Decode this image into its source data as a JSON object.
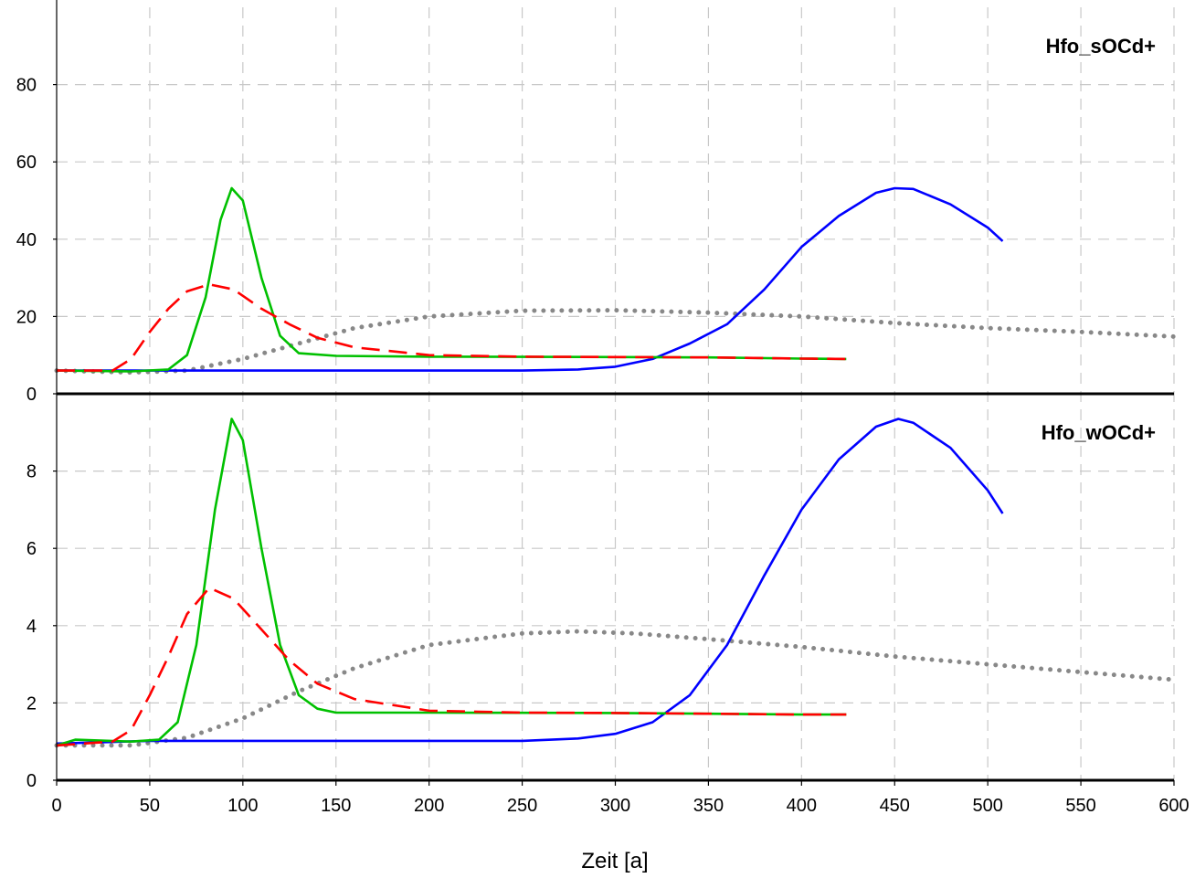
{
  "chart_data": {
    "type": "line",
    "xlabel": "Zeit [a]",
    "x_ticks": [
      0,
      50,
      100,
      150,
      200,
      250,
      300,
      350,
      400,
      450,
      500,
      550,
      600
    ],
    "xlim": [
      0,
      600
    ],
    "grid": true,
    "panels": [
      {
        "title": "Hfo_sOCd+",
        "ylim": [
          0,
          100
        ],
        "y_ticks": [
          0,
          20,
          40,
          60,
          80
        ],
        "series": [
          {
            "color": "#888888",
            "style": "dotted",
            "points": [
              [
                0,
                6
              ],
              [
                40,
                5.5
              ],
              [
                70,
                6
              ],
              [
                100,
                9
              ],
              [
                130,
                13
              ],
              [
                160,
                17
              ],
              [
                200,
                20
              ],
              [
                250,
                21.5
              ],
              [
                300,
                21.6
              ],
              [
                350,
                21
              ],
              [
                400,
                20
              ],
              [
                450,
                18.3
              ],
              [
                500,
                17
              ],
              [
                550,
                16
              ],
              [
                600,
                14.8
              ]
            ]
          },
          {
            "color": "#0000ff",
            "style": "solid",
            "points": [
              [
                0,
                6
              ],
              [
                50,
                6
              ],
              [
                100,
                6
              ],
              [
                150,
                6
              ],
              [
                200,
                6
              ],
              [
                250,
                6
              ],
              [
                280,
                6.3
              ],
              [
                300,
                7
              ],
              [
                320,
                9
              ],
              [
                340,
                13
              ],
              [
                360,
                18
              ],
              [
                380,
                27
              ],
              [
                400,
                38
              ],
              [
                420,
                46
              ],
              [
                440,
                52
              ],
              [
                450,
                53.2
              ],
              [
                460,
                53
              ],
              [
                480,
                49
              ],
              [
                500,
                43
              ],
              [
                508,
                39.5
              ]
            ]
          },
          {
            "color": "#00c000",
            "style": "solid",
            "points": [
              [
                0,
                6
              ],
              [
                40,
                5.8
              ],
              [
                60,
                6.3
              ],
              [
                70,
                10
              ],
              [
                80,
                25
              ],
              [
                88,
                45
              ],
              [
                94,
                53.2
              ],
              [
                100,
                50
              ],
              [
                110,
                30
              ],
              [
                120,
                15
              ],
              [
                130,
                10.5
              ],
              [
                150,
                9.8
              ],
              [
                200,
                9.6
              ],
              [
                300,
                9.5
              ],
              [
                350,
                9.4
              ],
              [
                400,
                9.1
              ],
              [
                424,
                9
              ]
            ]
          },
          {
            "color": "#ff0000",
            "style": "dashed",
            "points": [
              [
                0,
                6
              ],
              [
                30,
                6
              ],
              [
                40,
                9
              ],
              [
                50,
                16
              ],
              [
                60,
                22
              ],
              [
                70,
                26.5
              ],
              [
                82,
                28.3
              ],
              [
                95,
                27
              ],
              [
                110,
                22
              ],
              [
                125,
                18
              ],
              [
                140,
                14.5
              ],
              [
                160,
                12
              ],
              [
                200,
                10
              ],
              [
                250,
                9.6
              ],
              [
                300,
                9.5
              ],
              [
                350,
                9.4
              ],
              [
                400,
                9.1
              ],
              [
                424,
                9
              ]
            ]
          }
        ]
      },
      {
        "title": "Hfo_wOCd+",
        "ylim": [
          0,
          10
        ],
        "y_ticks": [
          0,
          2,
          4,
          6,
          8
        ],
        "series": [
          {
            "color": "#888888",
            "style": "dotted",
            "points": [
              [
                0,
                0.9
              ],
              [
                40,
                0.9
              ],
              [
                70,
                1.1
              ],
              [
                100,
                1.6
              ],
              [
                130,
                2.3
              ],
              [
                160,
                2.9
              ],
              [
                200,
                3.5
              ],
              [
                250,
                3.8
              ],
              [
                280,
                3.85
              ],
              [
                310,
                3.8
              ],
              [
                350,
                3.65
              ],
              [
                400,
                3.45
              ],
              [
                450,
                3.2
              ],
              [
                500,
                3.0
              ],
              [
                550,
                2.8
              ],
              [
                600,
                2.6
              ]
            ]
          },
          {
            "color": "#0000ff",
            "style": "solid",
            "points": [
              [
                0,
                0.95
              ],
              [
                50,
                1.02
              ],
              [
                100,
                1.02
              ],
              [
                150,
                1.02
              ],
              [
                200,
                1.02
              ],
              [
                250,
                1.02
              ],
              [
                280,
                1.08
              ],
              [
                300,
                1.2
              ],
              [
                320,
                1.5
              ],
              [
                340,
                2.2
              ],
              [
                360,
                3.5
              ],
              [
                380,
                5.3
              ],
              [
                400,
                7
              ],
              [
                420,
                8.3
              ],
              [
                440,
                9.15
              ],
              [
                452,
                9.35
              ],
              [
                460,
                9.25
              ],
              [
                480,
                8.6
              ],
              [
                500,
                7.5
              ],
              [
                508,
                6.9
              ]
            ]
          },
          {
            "color": "#00c000",
            "style": "solid",
            "points": [
              [
                0,
                0.9
              ],
              [
                10,
                1.05
              ],
              [
                40,
                1.0
              ],
              [
                55,
                1.05
              ],
              [
                65,
                1.5
              ],
              [
                75,
                3.5
              ],
              [
                85,
                7
              ],
              [
                94,
                9.35
              ],
              [
                100,
                8.8
              ],
              [
                110,
                6
              ],
              [
                120,
                3.5
              ],
              [
                130,
                2.2
              ],
              [
                140,
                1.85
              ],
              [
                150,
                1.75
              ],
              [
                200,
                1.75
              ],
              [
                300,
                1.74
              ],
              [
                350,
                1.72
              ],
              [
                400,
                1.7
              ],
              [
                424,
                1.7
              ]
            ]
          },
          {
            "color": "#ff0000",
            "style": "dashed",
            "points": [
              [
                0,
                0.9
              ],
              [
                30,
                1.0
              ],
              [
                40,
                1.3
              ],
              [
                50,
                2.2
              ],
              [
                60,
                3.2
              ],
              [
                70,
                4.3
              ],
              [
                82,
                4.98
              ],
              [
                95,
                4.7
              ],
              [
                110,
                3.9
              ],
              [
                125,
                3.1
              ],
              [
                140,
                2.5
              ],
              [
                160,
                2.1
              ],
              [
                200,
                1.8
              ],
              [
                250,
                1.75
              ],
              [
                300,
                1.74
              ],
              [
                350,
                1.72
              ],
              [
                400,
                1.7
              ],
              [
                424,
                1.7
              ]
            ]
          }
        ]
      }
    ]
  }
}
